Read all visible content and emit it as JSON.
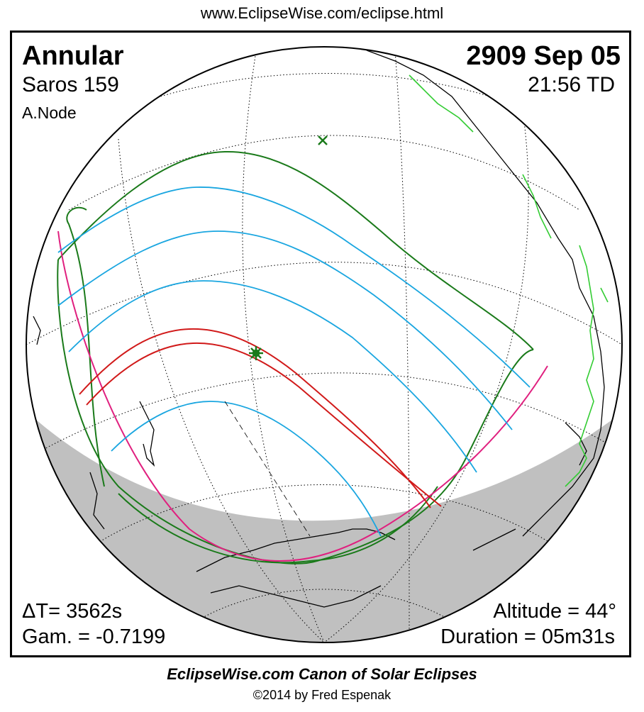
{
  "source_url": "www.EclipseWise.com/eclipse.html",
  "eclipse": {
    "type": "Annular",
    "saros": "Saros 159",
    "node": "A.Node",
    "date": "2909 Sep 05",
    "time": "21:56 TD"
  },
  "parameters": {
    "delta_t": "ΔT=   3562s",
    "gamma": "Gam. = -0.7199",
    "altitude": "Altitude = 44°",
    "duration": "Duration = 05m31s"
  },
  "footer": {
    "canon": "EclipseWise.com Canon of Solar Eclipses",
    "copyright": "©2014 by Fred Espenak"
  },
  "colors": {
    "penumbral_limits": "#1a7a1a",
    "central_path": "#d11a1a",
    "magnitude_curves": "#1aa6e0",
    "rise_set_curve": "#e0207f",
    "night_shade": "#c0c0c0",
    "coastline": "#000000",
    "borders": "#33cc33"
  },
  "icons": {
    "greatest_eclipse": "asterisk-marker-icon",
    "subsolar_point": "x-marker-icon"
  }
}
